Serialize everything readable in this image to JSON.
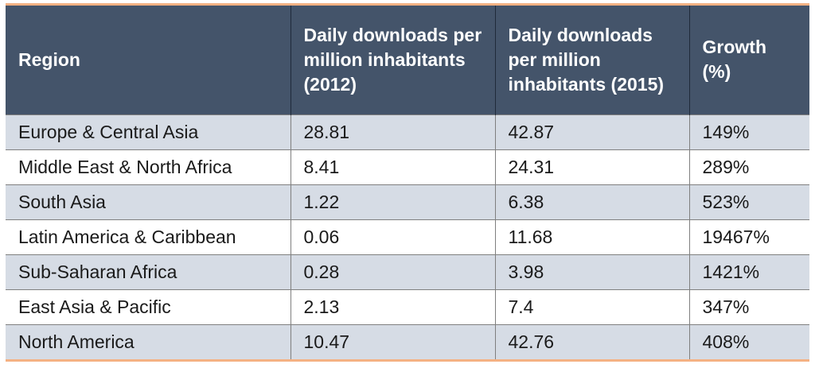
{
  "table": {
    "headers": [
      "Region",
      "Daily downloads per million inhabitants (2012)",
      "Daily downloads per million inhabitants (2015)",
      "Growth (%)"
    ],
    "rows": [
      [
        "Europe & Central Asia",
        "28.81",
        "42.87",
        "149%"
      ],
      [
        "Middle East & North Africa",
        "8.41",
        "24.31",
        "289%"
      ],
      [
        "South Asia",
        "1.22",
        "6.38",
        "523%"
      ],
      [
        "Latin America & Caribbean",
        "0.06",
        "11.68",
        "19467%"
      ],
      [
        "Sub-Saharan Africa",
        "0.28",
        "3.98",
        "1421%"
      ],
      [
        "East Asia & Pacific",
        "2.13",
        "7.4",
        "347%"
      ],
      [
        "North America",
        "10.47",
        "42.76",
        "408%"
      ]
    ]
  },
  "colors": {
    "header_bg": "#44546a",
    "header_text": "#ffffff",
    "shaded_row": "#d6dce5",
    "accent_border": "#f4b183"
  }
}
